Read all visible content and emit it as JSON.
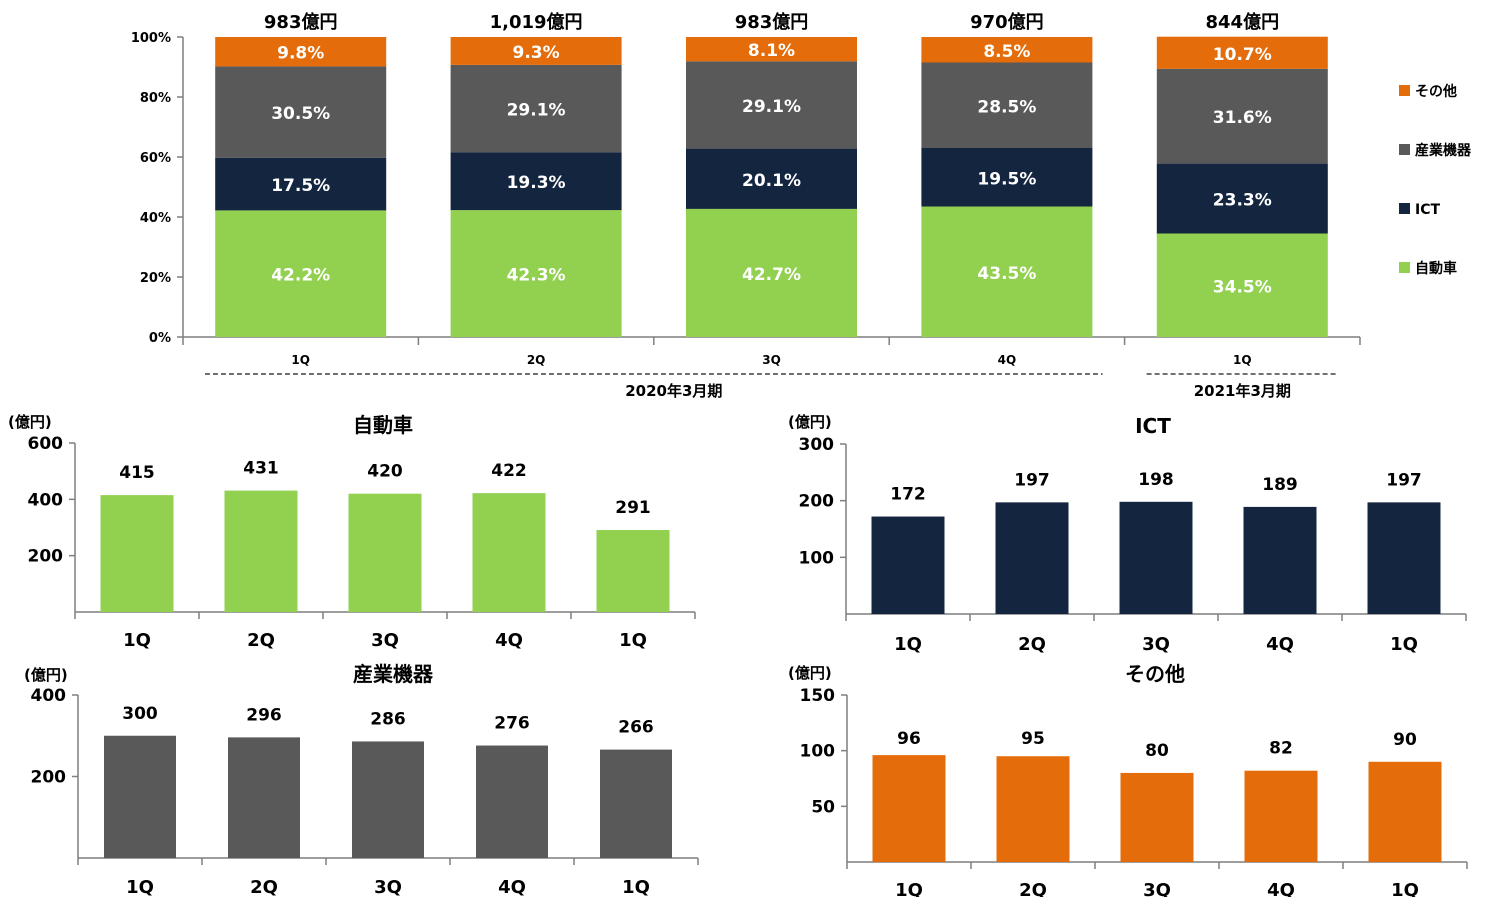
{
  "chart_data": [
    {
      "type": "bar",
      "stacked": true,
      "categories": [
        "1Q",
        "2Q",
        "3Q",
        "4Q",
        "1Q"
      ],
      "periods": [
        {
          "label": "2020年3月期",
          "categories": [
            0,
            1,
            2,
            3
          ]
        },
        {
          "label": "2021年3月期",
          "categories": [
            4
          ]
        }
      ],
      "totals": [
        "983億円",
        "1,019億円",
        "983億円",
        "970億円",
        "844億円"
      ],
      "series": [
        {
          "name": "自動車",
          "color": "#92d050",
          "values": [
            42.2,
            42.3,
            42.7,
            43.5,
            34.5
          ]
        },
        {
          "name": "ICT",
          "color": "#13253f",
          "values": [
            17.5,
            19.3,
            20.1,
            19.5,
            23.3
          ]
        },
        {
          "name": "産業機器",
          "color": "#595959",
          "values": [
            30.5,
            29.1,
            29.1,
            28.5,
            31.6
          ]
        },
        {
          "name": "その他",
          "color": "#e46c0a",
          "values": [
            9.8,
            9.3,
            8.1,
            8.5,
            10.7
          ]
        }
      ],
      "value_labels": [
        "42.2%",
        "42.3%",
        "42.7%",
        "43.5%",
        "34.5%",
        "17.5%",
        "19.3%",
        "20.1%",
        "19.5%",
        "23.3%",
        "30.5%",
        "29.1%",
        "29.1%",
        "28.5%",
        "31.6%",
        "9.8%",
        "9.3%",
        "8.1%",
        "8.5%",
        "10.7%"
      ],
      "ylim": [
        0,
        100
      ],
      "yticks": [
        "0%",
        "20%",
        "40%",
        "60%",
        "80%",
        "100%"
      ],
      "legend": "right",
      "legend_order": [
        "その他",
        "産業機器",
        "ICT",
        "自動車"
      ],
      "grid": false
    },
    {
      "type": "bar",
      "title": "自動車",
      "unit": "(億円)",
      "color": "#92d050",
      "categories": [
        "1Q",
        "2Q",
        "3Q",
        "4Q",
        "1Q"
      ],
      "values": [
        415,
        431,
        420,
        422,
        291
      ],
      "ylim": [
        0,
        600
      ],
      "yticks": [
        "200",
        "400",
        "600"
      ],
      "grid": false
    },
    {
      "type": "bar",
      "title": "ICT",
      "unit": "(億円)",
      "color": "#13253f",
      "categories": [
        "1Q",
        "2Q",
        "3Q",
        "4Q",
        "1Q"
      ],
      "values": [
        172,
        197,
        198,
        189,
        197
      ],
      "ylim": [
        0,
        300
      ],
      "yticks": [
        "100",
        "200",
        "300"
      ],
      "grid": false
    },
    {
      "type": "bar",
      "title": "産業機器",
      "unit": "(億円)",
      "color": "#595959",
      "categories": [
        "1Q",
        "2Q",
        "3Q",
        "4Q",
        "1Q"
      ],
      "values": [
        300,
        296,
        286,
        276,
        266
      ],
      "ylim": [
        0,
        400
      ],
      "yticks": [
        "200",
        "400"
      ],
      "grid": false
    },
    {
      "type": "bar",
      "title": "その他",
      "unit": "(億円)",
      "color": "#e46c0a",
      "categories": [
        "1Q",
        "2Q",
        "3Q",
        "4Q",
        "1Q"
      ],
      "values": [
        96,
        95,
        80,
        82,
        90
      ],
      "ylim": [
        0,
        150
      ],
      "yticks": [
        "50",
        "100",
        "150"
      ],
      "grid": false
    }
  ]
}
